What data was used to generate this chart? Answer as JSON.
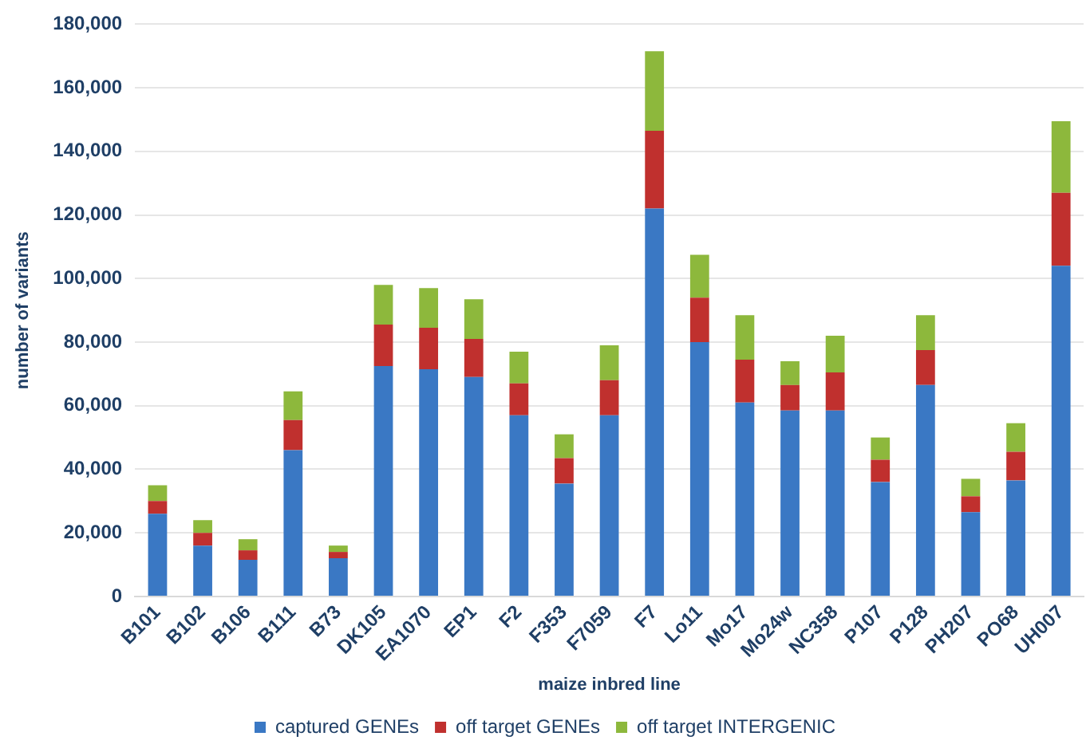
{
  "chart_data": {
    "type": "bar",
    "stacked": true,
    "xlabel": "maize inbred line",
    "ylabel": "number of variants",
    "categories": [
      "B101",
      "B102",
      "B106",
      "B111",
      "B73",
      "DK105",
      "EA1070",
      "EP1",
      "F2",
      "F353",
      "F7059",
      "F7",
      "Lo11",
      "Mo17",
      "Mo24w",
      "NC358",
      "P107",
      "P128",
      "PH207",
      "PO68",
      "UH007"
    ],
    "series": [
      {
        "name": "captured GENEs",
        "color": "#3a78c4",
        "values": [
          26000,
          16000,
          11500,
          46000,
          12000,
          72500,
          71500,
          69000,
          57000,
          35500,
          57000,
          122000,
          80000,
          61000,
          58500,
          58500,
          36000,
          66500,
          26500,
          36500,
          104000
        ]
      },
      {
        "name": "off target GENEs",
        "color": "#c0302e",
        "values": [
          4000,
          4000,
          3000,
          9500,
          2000,
          13000,
          13000,
          12000,
          10000,
          8000,
          11000,
          24500,
          14000,
          13500,
          8000,
          12000,
          7000,
          11000,
          5000,
          9000,
          23000
        ]
      },
      {
        "name": "off target INTERGENIC",
        "color": "#8db83c",
        "values": [
          5000,
          4000,
          3500,
          9000,
          2000,
          12500,
          12500,
          12500,
          10000,
          7500,
          11000,
          25000,
          13500,
          14000,
          7500,
          11500,
          7000,
          11000,
          5500,
          9000,
          22500
        ]
      }
    ],
    "ylim": [
      0,
      180000
    ],
    "yticks": [
      0,
      {
        "value": 20000,
        "label": "20,000"
      },
      {
        "value": 40000,
        "label": "40,000"
      },
      {
        "value": 60000,
        "label": "60,000"
      },
      {
        "value": 80000,
        "label": "80,000"
      },
      {
        "value": 100000,
        "label": "100,000"
      },
      {
        "value": 120000,
        "label": "120,000"
      },
      {
        "value": 140000,
        "label": "140,000"
      },
      {
        "value": 160000,
        "label": "160,000"
      },
      {
        "value": 180000,
        "label": "180,000"
      }
    ],
    "grid": "y",
    "legend": "bottom"
  }
}
